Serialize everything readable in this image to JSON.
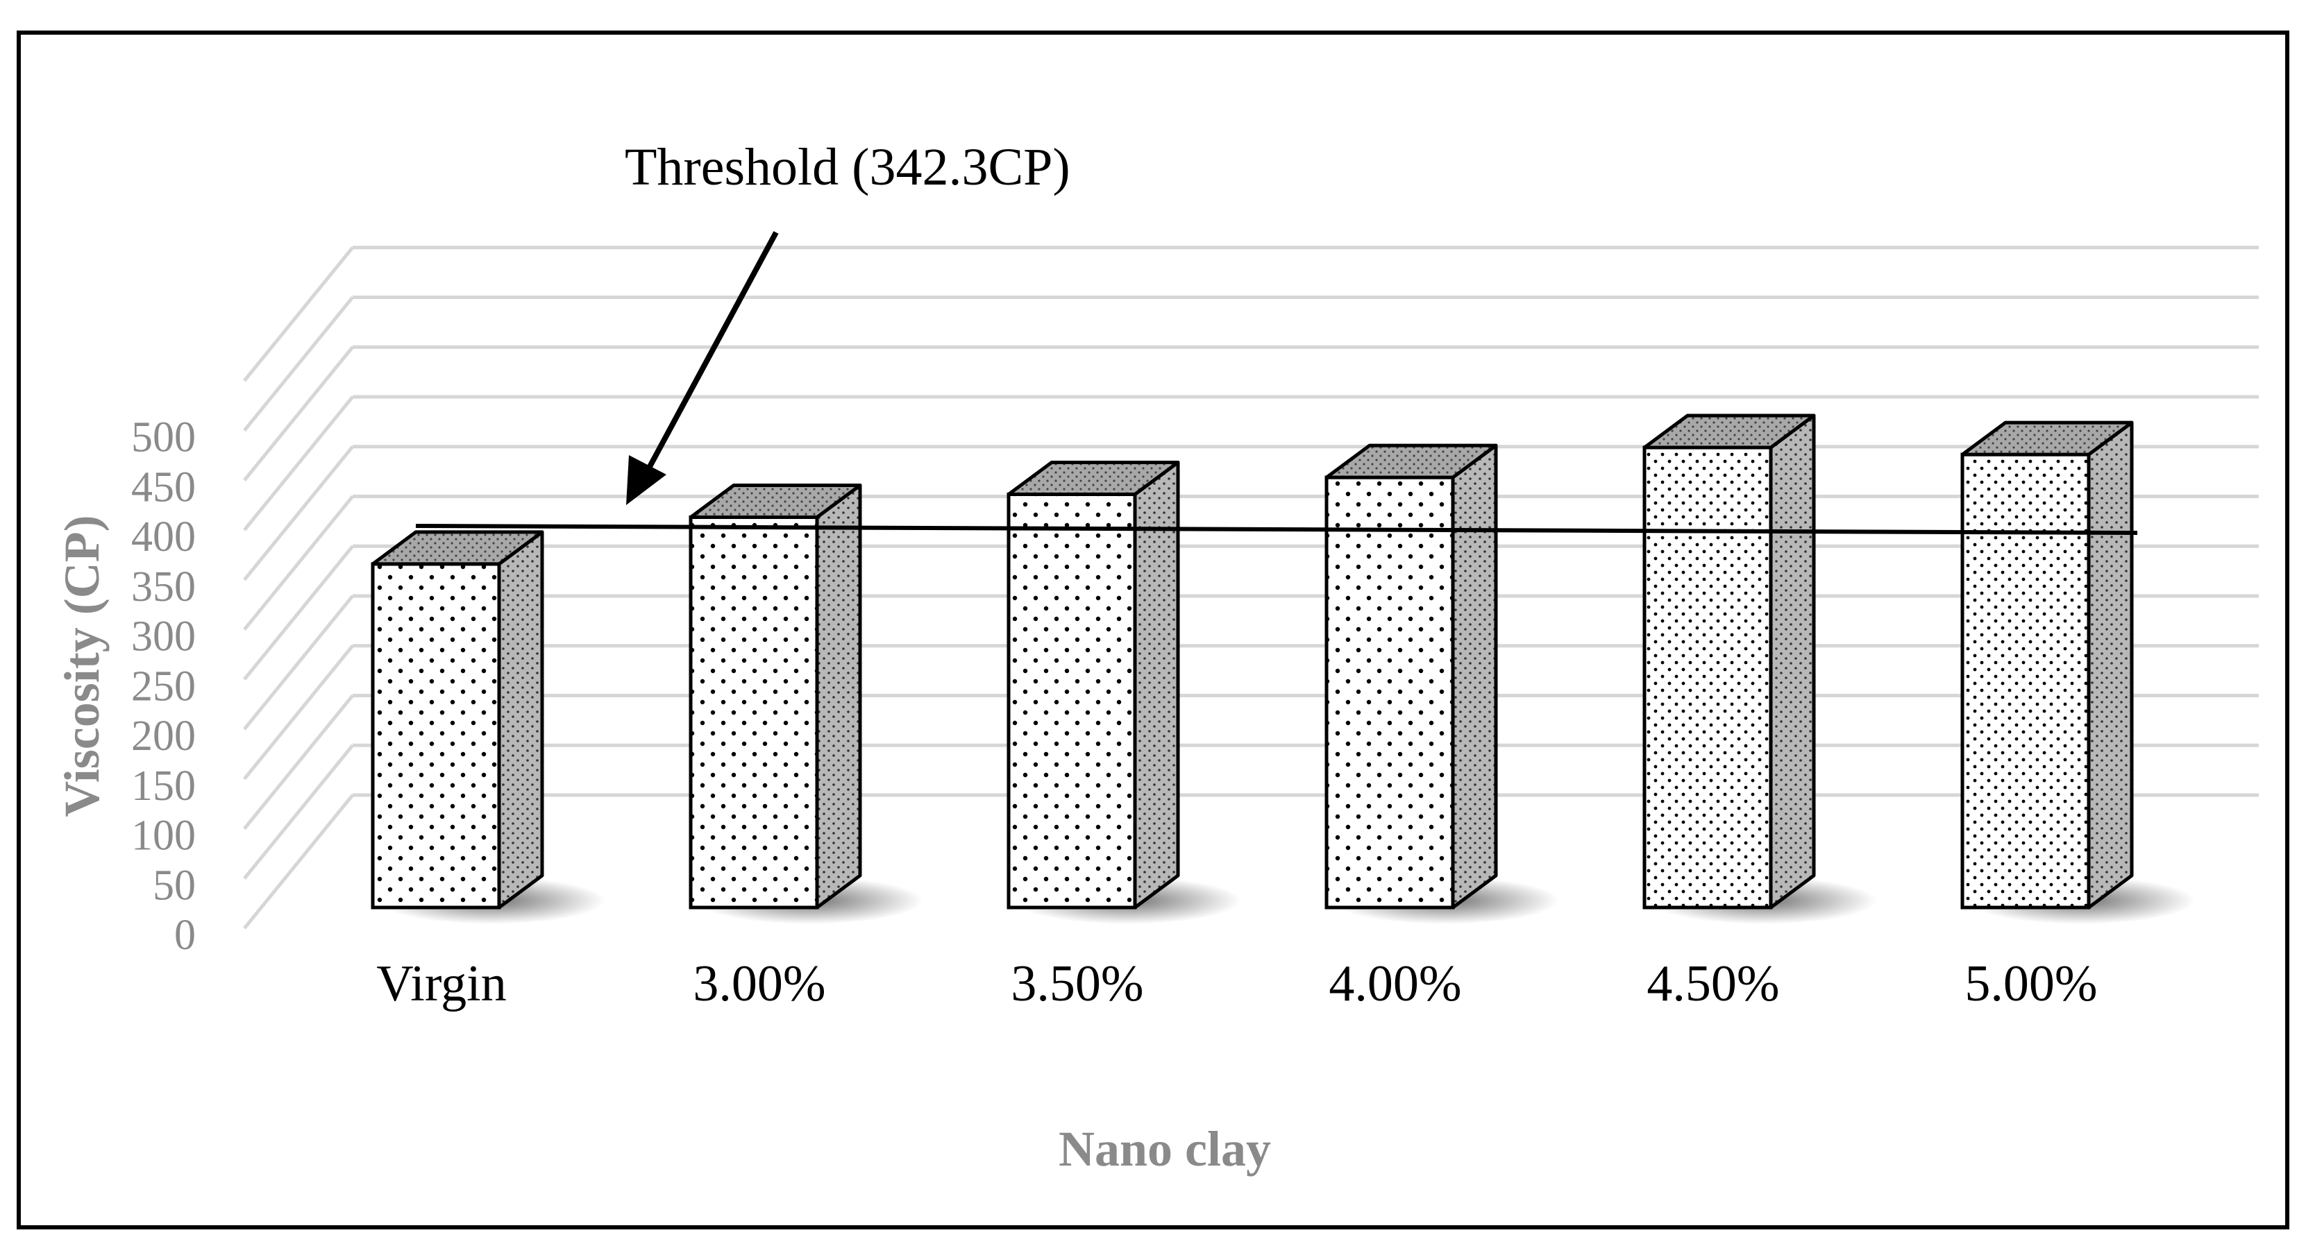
{
  "chart_data": {
    "type": "bar",
    "style": "3d-column",
    "categories": [
      "Virgin",
      "3.00%",
      "3.50%",
      "4.00%",
      "4.50%",
      "5.00%"
    ],
    "values": [
      345,
      392,
      415,
      432,
      462,
      455
    ],
    "xlabel": "Nano clay",
    "ylabel": "Viscosity (CP)",
    "ylim": [
      0,
      500
    ],
    "yticks": [
      0,
      50,
      100,
      150,
      200,
      250,
      300,
      350,
      400,
      450,
      500
    ],
    "grid": true,
    "legend": "none",
    "threshold": {
      "value": 342.3,
      "label": "Threshold (342.3CP)"
    },
    "colors": {
      "bar_front": "#ffffff",
      "bar_side": "#b8b8b8",
      "bar_top": "#a8a8a8",
      "grid": "#d6d6d6",
      "tick_text": "#8a8a8a",
      "axis_title": "#8a8a8a"
    }
  }
}
